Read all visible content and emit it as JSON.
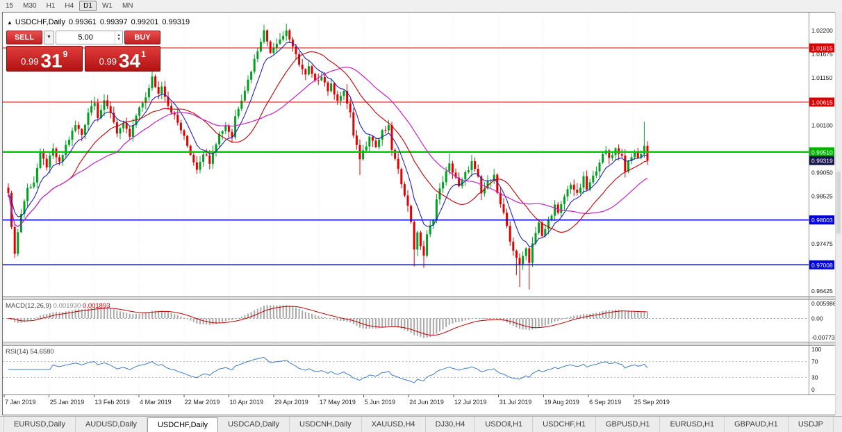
{
  "toolbar": {
    "timeframes": [
      {
        "label": "15",
        "active": false
      },
      {
        "label": "M30",
        "active": false
      },
      {
        "label": "H1",
        "active": false
      },
      {
        "label": "H4",
        "active": false
      },
      {
        "label": "D1",
        "active": true
      },
      {
        "label": "W1",
        "active": false
      },
      {
        "label": "MN",
        "active": false
      }
    ]
  },
  "chart_header": {
    "toggle_icon": "▲",
    "symbol": "USDCHF,Daily",
    "open": "0.99361",
    "high": "0.99397",
    "low": "0.99201",
    "close": "0.99319"
  },
  "trade_panel": {
    "sell_label": "SELL",
    "buy_label": "BUY",
    "volume": "5.00",
    "sell_price": {
      "base": "0.99",
      "big": "31",
      "sup": "9"
    },
    "buy_price": {
      "base": "0.99",
      "big": "34",
      "sup": "1"
    }
  },
  "macd_panel": {
    "title": "MACD(12,26,9)",
    "main_value": "0.001930",
    "signal_value": "0.001893",
    "axis_labels": [
      {
        "text": "0.005986",
        "value": 0.005986
      },
      {
        "text": "0.00",
        "value": 0
      },
      {
        "text": "-0.007732",
        "value": -0.007732
      }
    ]
  },
  "rsi_panel": {
    "title": "RSI(14)",
    "value": "54.6580",
    "axis_labels": [
      {
        "text": "100",
        "value": 100
      },
      {
        "text": "70",
        "value": 70
      },
      {
        "text": "30",
        "value": 30
      },
      {
        "text": "0",
        "value": 0
      }
    ],
    "levels": [
      70,
      30
    ]
  },
  "tabs": [
    {
      "label": "EURUSD,Daily",
      "active": false
    },
    {
      "label": "AUDUSD,Daily",
      "active": false
    },
    {
      "label": "USDCHF,Daily",
      "active": true
    },
    {
      "label": "USDCAD,Daily",
      "active": false
    },
    {
      "label": "USDCNH,Daily",
      "active": false
    },
    {
      "label": "XAUUSD,H4",
      "active": false
    },
    {
      "label": "DJ30,H4",
      "active": false
    },
    {
      "label": "USDOil,H1",
      "active": false
    },
    {
      "label": "USDCHF,H1",
      "active": false
    },
    {
      "label": "GBPUSD,H1",
      "active": false
    },
    {
      "label": "EURUSD,H1",
      "active": false
    },
    {
      "label": "GBPAUD,H1",
      "active": false
    },
    {
      "label": "USDJP",
      "active": false
    }
  ],
  "colors": {
    "bull": "#00a020",
    "bear": "#e30000",
    "ma_fast": "#2020c0",
    "ma_mid": "#c00000",
    "ma_slow": "#c820c8",
    "macd_hist": "#a8a8a8",
    "macd_signal": "#c00000",
    "rsi_line": "#3b7dc8",
    "grid": "#ebebeb",
    "axis_line": "#909090",
    "axis_text": "#111111"
  },
  "chart_data": {
    "type": "candlestick",
    "symbol": "USDCHF",
    "period": "Daily",
    "bars": 201,
    "visible_range": {
      "price_min": 0.9632,
      "price_max": 1.026
    },
    "last_close": 0.99319,
    "price_path_anchors": [
      [
        0,
        0.986
      ],
      [
        1,
        0.978
      ],
      [
        2,
        0.973
      ],
      [
        4,
        0.9815
      ],
      [
        6,
        0.987
      ],
      [
        8,
        0.9885
      ],
      [
        10,
        0.9945
      ],
      [
        12,
        0.992
      ],
      [
        14,
        0.9955
      ],
      [
        16,
        0.9925
      ],
      [
        18,
        0.9965
      ],
      [
        21,
        1.001
      ],
      [
        23,
        0.999
      ],
      [
        25,
        1.004
      ],
      [
        27,
        1.0065
      ],
      [
        28,
        1.003
      ],
      [
        30,
        1.006
      ],
      [
        32,
        1.004
      ],
      [
        34,
        0.9995
      ],
      [
        36,
        1.001
      ],
      [
        38,
        0.9985
      ],
      [
        40,
        1.003
      ],
      [
        42,
        1.006
      ],
      [
        44,
        1.009
      ],
      [
        45,
        1.0115
      ],
      [
        47,
        1.008
      ],
      [
        48,
        1.01
      ],
      [
        50,
        1.0055
      ],
      [
        52,
        1.003
      ],
      [
        54,
        1.0
      ],
      [
        56,
        0.9965
      ],
      [
        58,
        0.993
      ],
      [
        59,
        0.9915
      ],
      [
        61,
        0.995
      ],
      [
        63,
        0.993
      ],
      [
        64,
        0.9955
      ],
      [
        66,
        0.999
      ],
      [
        68,
        1.001
      ],
      [
        70,
        0.9985
      ],
      [
        71,
        1.003
      ],
      [
        73,
        1.007
      ],
      [
        75,
        1.011
      ],
      [
        77,
        1.0155
      ],
      [
        79,
        1.02
      ],
      [
        80,
        1.0218
      ],
      [
        82,
        1.0175
      ],
      [
        84,
        1.0195
      ],
      [
        86,
        1.0208
      ],
      [
        87,
        1.0222
      ],
      [
        89,
        1.018
      ],
      [
        91,
        1.0148
      ],
      [
        93,
        1.012
      ],
      [
        94,
        1.0138
      ],
      [
        96,
        1.0105
      ],
      [
        98,
        1.0122
      ],
      [
        100,
        1.0088
      ],
      [
        101,
        1.0098
      ],
      [
        103,
        1.0068
      ],
      [
        105,
        1.0082
      ],
      [
        107,
        1.0038
      ],
      [
        108,
        0.9985
      ],
      [
        110,
        0.9938
      ],
      [
        112,
        0.9968
      ],
      [
        113,
        0.999
      ],
      [
        115,
        0.9962
      ],
      [
        117,
        0.9995
      ],
      [
        119,
        1.0005
      ],
      [
        120,
        0.9958
      ],
      [
        122,
        0.9908
      ],
      [
        124,
        0.986
      ],
      [
        126,
        0.9798
      ],
      [
        127,
        0.9738
      ],
      [
        128,
        0.9768
      ],
      [
        130,
        0.9722
      ],
      [
        131,
        0.9765
      ],
      [
        133,
        0.9805
      ],
      [
        134,
        0.9845
      ],
      [
        136,
        0.9888
      ],
      [
        138,
        0.9922
      ],
      [
        140,
        0.9895
      ],
      [
        141,
        0.9872
      ],
      [
        143,
        0.9902
      ],
      [
        145,
        0.9928
      ],
      [
        147,
        0.9892
      ],
      [
        148,
        0.9858
      ],
      [
        150,
        0.9882
      ],
      [
        152,
        0.9905
      ],
      [
        153,
        0.9858
      ],
      [
        155,
        0.9812
      ],
      [
        156,
        0.9782
      ],
      [
        157,
        0.9752
      ],
      [
        159,
        0.9718
      ],
      [
        160,
        0.9698
      ],
      [
        162,
        0.9742
      ],
      [
        163,
        0.9705
      ],
      [
        164,
        0.9752
      ],
      [
        166,
        0.9792
      ],
      [
        167,
        0.9762
      ],
      [
        169,
        0.9798
      ],
      [
        171,
        0.9832
      ],
      [
        172,
        0.9812
      ],
      [
        174,
        0.9852
      ],
      [
        176,
        0.9882
      ],
      [
        178,
        0.9855
      ],
      [
        180,
        0.9892
      ],
      [
        181,
        0.9868
      ],
      [
        183,
        0.9895
      ],
      [
        185,
        0.9932
      ],
      [
        187,
        0.9952
      ],
      [
        188,
        0.9938
      ],
      [
        190,
        0.9958
      ],
      [
        192,
        0.9942
      ],
      [
        193,
        0.9912
      ],
      [
        195,
        0.9938
      ],
      [
        196,
        0.9952
      ],
      [
        197,
        0.9935
      ],
      [
        199,
        0.9965
      ],
      [
        200,
        0.99319
      ]
    ],
    "wick_lows": {
      "2": 0.9716,
      "110": 0.99,
      "127": 0.9697,
      "130": 0.9694,
      "159": 0.9678,
      "160": 0.9652,
      "163": 0.9646
    },
    "wick_highs": {
      "45": 1.0128,
      "80": 1.0233,
      "87": 1.0235,
      "119": 1.0022,
      "138": 0.9948,
      "199": 1.0018
    },
    "ma_periods": {
      "fast": 8,
      "mid": 20,
      "slow": 34
    },
    "indicators": {
      "macd": {
        "fast": 12,
        "slow": 26,
        "signal": 9
      },
      "rsi": {
        "period": 14
      }
    },
    "hlines": [
      {
        "price": 1.01815,
        "color": "#dd0000",
        "width": 1.3,
        "label": "1.01815",
        "badge": "#dd0000"
      },
      {
        "price": 1.00615,
        "color": "#dd0000",
        "width": 1.3,
        "label": "1.00615",
        "badge": "#dd0000"
      },
      {
        "price": 0.9951,
        "color": "#00cc00",
        "width": 2.6,
        "label": "0.99510",
        "badge": "#00b400"
      },
      {
        "price": 0.98003,
        "color": "#0000dd",
        "width": 1.6,
        "label": "0.98003",
        "badge": "#0000dd"
      },
      {
        "price": 0.97008,
        "color": "#0000dd",
        "width": 1.6,
        "label": "0.97008",
        "badge": "#0000dd"
      }
    ],
    "current": {
      "price": 0.99319,
      "label": "0.99319",
      "badge": "#15154d"
    },
    "price_axis_labels": [
      {
        "text": "1.02200",
        "price": 1.022
      },
      {
        "text": "1.01675",
        "price": 1.01675
      },
      {
        "text": "1.01150",
        "price": 1.0115
      },
      {
        "text": "1.00100",
        "price": 1.001
      },
      {
        "text": "0.99050",
        "price": 0.9905
      },
      {
        "text": "0.98525",
        "price": 0.98525
      },
      {
        "text": "0.97475",
        "price": 0.97475
      },
      {
        "text": "0.96425",
        "price": 0.96425
      }
    ],
    "date_labels": [
      "7 Jan 2019",
      "25 Jan 2019",
      "13 Feb 2019",
      "4 Mar 2019",
      "22 Mar 2019",
      "10 Apr 2019",
      "29 Apr 2019",
      "17 May 2019",
      "5 Jun 2019",
      "24 Jun 2019",
      "12 Jul 2019",
      "31 Jul 2019",
      "19 Aug 2019",
      "6 Sep 2019",
      "25 Sep 2019"
    ]
  }
}
